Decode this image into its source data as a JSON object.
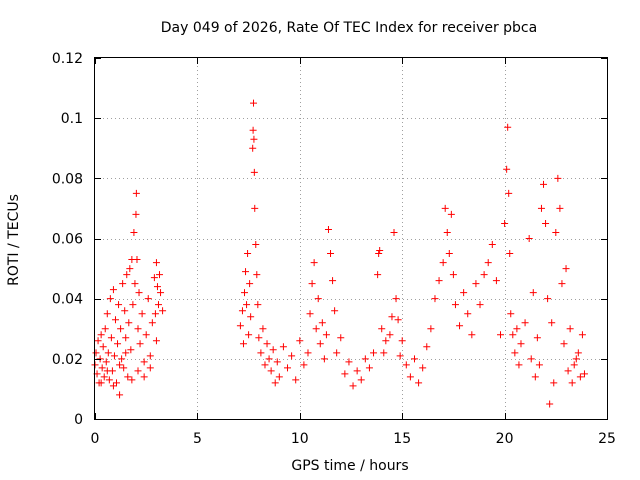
{
  "chart_data": {
    "type": "scatter",
    "title": "Day 049 of 2026, Rate Of TEC Index for receiver pbca",
    "xlabel": "GPS time / hours",
    "ylabel": "ROTI / TECUs",
    "xlim": [
      0,
      25
    ],
    "ylim": [
      0,
      0.12
    ],
    "xticks": [
      0,
      5,
      10,
      15,
      20,
      25
    ],
    "yticks": [
      0,
      0.02,
      0.04,
      0.06,
      0.08,
      0.1,
      0.12
    ],
    "xtick_labels": [
      "0",
      "5",
      "10",
      "15",
      "20",
      "25"
    ],
    "ytick_labels": [
      "0",
      "0.02",
      "0.04",
      "0.06",
      "0.08",
      "0.1",
      "0.12"
    ],
    "grid": true,
    "marker": "plus",
    "color": "#ff0000",
    "series": [
      {
        "points": [
          [
            0.0,
            0.018
          ],
          [
            0.05,
            0.022
          ],
          [
            0.1,
            0.015
          ],
          [
            0.15,
            0.026
          ],
          [
            0.2,
            0.012
          ],
          [
            0.25,
            0.02
          ],
          [
            0.3,
            0.028
          ],
          [
            0.35,
            0.017
          ],
          [
            0.4,
            0.024
          ],
          [
            0.45,
            0.014
          ],
          [
            0.5,
            0.03
          ],
          [
            0.55,
            0.019
          ],
          [
            0.6,
            0.035
          ],
          [
            0.65,
            0.022
          ],
          [
            0.7,
            0.013
          ],
          [
            0.75,
            0.04
          ],
          [
            0.8,
            0.027
          ],
          [
            0.85,
            0.016
          ],
          [
            0.9,
            0.043
          ],
          [
            0.95,
            0.021
          ],
          [
            1.0,
            0.033
          ],
          [
            1.05,
            0.012
          ],
          [
            1.1,
            0.025
          ],
          [
            1.15,
            0.038
          ],
          [
            1.2,
            0.008
          ],
          [
            1.25,
            0.03
          ],
          [
            1.3,
            0.02
          ],
          [
            1.35,
            0.045
          ],
          [
            1.4,
            0.017
          ],
          [
            1.45,
            0.036
          ],
          [
            1.5,
            0.027
          ],
          [
            1.55,
            0.048
          ],
          [
            1.6,
            0.014
          ],
          [
            1.65,
            0.032
          ],
          [
            1.7,
            0.05
          ],
          [
            1.75,
            0.023
          ],
          [
            1.8,
            0.053
          ],
          [
            1.85,
            0.038
          ],
          [
            1.9,
            0.062
          ],
          [
            1.95,
            0.045
          ],
          [
            2.0,
            0.068
          ],
          [
            2.02,
            0.075
          ],
          [
            2.05,
            0.053
          ],
          [
            2.1,
            0.03
          ],
          [
            2.15,
            0.042
          ],
          [
            2.2,
            0.025
          ],
          [
            2.3,
            0.035
          ],
          [
            2.4,
            0.019
          ],
          [
            2.5,
            0.028
          ],
          [
            2.6,
            0.04
          ],
          [
            2.7,
            0.017
          ],
          [
            2.8,
            0.032
          ],
          [
            2.9,
            0.047
          ],
          [
            2.95,
            0.035
          ],
          [
            3.0,
            0.052
          ],
          [
            3.05,
            0.044
          ],
          [
            3.1,
            0.038
          ],
          [
            3.15,
            0.048
          ],
          [
            3.2,
            0.042
          ],
          [
            3.3,
            0.036
          ],
          [
            0.3,
            0.012
          ],
          [
            0.6,
            0.016
          ],
          [
            0.9,
            0.011
          ],
          [
            1.2,
            0.018
          ],
          [
            1.5,
            0.022
          ],
          [
            1.8,
            0.013
          ],
          [
            2.1,
            0.016
          ],
          [
            2.4,
            0.014
          ],
          [
            2.7,
            0.021
          ],
          [
            3.0,
            0.026
          ],
          [
            7.1,
            0.031
          ],
          [
            7.2,
            0.036
          ],
          [
            7.25,
            0.025
          ],
          [
            7.3,
            0.042
          ],
          [
            7.35,
            0.049
          ],
          [
            7.4,
            0.038
          ],
          [
            7.45,
            0.055
          ],
          [
            7.5,
            0.028
          ],
          [
            7.55,
            0.045
          ],
          [
            7.6,
            0.034
          ],
          [
            7.7,
            0.09
          ],
          [
            7.72,
            0.096
          ],
          [
            7.74,
            0.105
          ],
          [
            7.76,
            0.093
          ],
          [
            7.78,
            0.082
          ],
          [
            7.8,
            0.07
          ],
          [
            7.85,
            0.058
          ],
          [
            7.9,
            0.048
          ],
          [
            7.95,
            0.038
          ],
          [
            8.0,
            0.027
          ],
          [
            8.1,
            0.022
          ],
          [
            8.2,
            0.03
          ],
          [
            8.3,
            0.018
          ],
          [
            8.4,
            0.025
          ],
          [
            8.5,
            0.02
          ],
          [
            8.6,
            0.016
          ],
          [
            8.7,
            0.023
          ],
          [
            8.8,
            0.012
          ],
          [
            8.9,
            0.019
          ],
          [
            9.0,
            0.014
          ],
          [
            9.2,
            0.024
          ],
          [
            9.4,
            0.017
          ],
          [
            9.6,
            0.021
          ],
          [
            9.8,
            0.013
          ],
          [
            10.0,
            0.026
          ],
          [
            10.2,
            0.018
          ],
          [
            10.4,
            0.022
          ],
          [
            10.5,
            0.035
          ],
          [
            10.6,
            0.045
          ],
          [
            10.7,
            0.052
          ],
          [
            10.8,
            0.03
          ],
          [
            10.9,
            0.04
          ],
          [
            11.0,
            0.025
          ],
          [
            11.1,
            0.032
          ],
          [
            11.2,
            0.02
          ],
          [
            11.3,
            0.028
          ],
          [
            11.4,
            0.063
          ],
          [
            11.5,
            0.055
          ],
          [
            11.6,
            0.046
          ],
          [
            11.7,
            0.036
          ],
          [
            11.8,
            0.022
          ],
          [
            12.0,
            0.027
          ],
          [
            12.2,
            0.015
          ],
          [
            12.4,
            0.019
          ],
          [
            12.6,
            0.011
          ],
          [
            12.8,
            0.016
          ],
          [
            13.0,
            0.013
          ],
          [
            13.2,
            0.02
          ],
          [
            13.4,
            0.017
          ],
          [
            13.6,
            0.022
          ],
          [
            13.8,
            0.048
          ],
          [
            13.85,
            0.055
          ],
          [
            13.9,
            0.056
          ],
          [
            14.0,
            0.03
          ],
          [
            14.1,
            0.022
          ],
          [
            14.2,
            0.026
          ],
          [
            14.4,
            0.028
          ],
          [
            14.5,
            0.034
          ],
          [
            14.6,
            0.062
          ],
          [
            14.7,
            0.04
          ],
          [
            14.8,
            0.033
          ],
          [
            14.9,
            0.021
          ],
          [
            15.0,
            0.026
          ],
          [
            15.2,
            0.018
          ],
          [
            15.4,
            0.014
          ],
          [
            15.6,
            0.02
          ],
          [
            15.8,
            0.012
          ],
          [
            16.0,
            0.017
          ],
          [
            16.2,
            0.024
          ],
          [
            16.4,
            0.03
          ],
          [
            16.6,
            0.04
          ],
          [
            16.8,
            0.046
          ],
          [
            17.0,
            0.052
          ],
          [
            17.1,
            0.07
          ],
          [
            17.2,
            0.062
          ],
          [
            17.3,
            0.055
          ],
          [
            17.4,
            0.068
          ],
          [
            17.5,
            0.048
          ],
          [
            17.6,
            0.038
          ],
          [
            17.8,
            0.031
          ],
          [
            18.0,
            0.042
          ],
          [
            18.2,
            0.035
          ],
          [
            18.4,
            0.028
          ],
          [
            18.6,
            0.045
          ],
          [
            18.8,
            0.038
          ],
          [
            19.0,
            0.048
          ],
          [
            19.2,
            0.052
          ],
          [
            19.4,
            0.058
          ],
          [
            19.6,
            0.046
          ],
          [
            19.8,
            0.028
          ],
          [
            20.0,
            0.065
          ],
          [
            20.1,
            0.083
          ],
          [
            20.15,
            0.097
          ],
          [
            20.2,
            0.075
          ],
          [
            20.25,
            0.055
          ],
          [
            20.3,
            0.035
          ],
          [
            20.4,
            0.028
          ],
          [
            20.5,
            0.022
          ],
          [
            20.6,
            0.03
          ],
          [
            20.7,
            0.018
          ],
          [
            20.8,
            0.025
          ],
          [
            21.0,
            0.032
          ],
          [
            21.2,
            0.06
          ],
          [
            21.4,
            0.042
          ],
          [
            21.6,
            0.027
          ],
          [
            21.8,
            0.07
          ],
          [
            21.9,
            0.078
          ],
          [
            22.0,
            0.065
          ],
          [
            22.1,
            0.04
          ],
          [
            22.2,
            0.005
          ],
          [
            22.3,
            0.032
          ],
          [
            22.5,
            0.062
          ],
          [
            22.6,
            0.08
          ],
          [
            22.7,
            0.07
          ],
          [
            22.8,
            0.045
          ],
          [
            22.9,
            0.025
          ],
          [
            23.0,
            0.05
          ],
          [
            23.2,
            0.03
          ],
          [
            23.4,
            0.018
          ],
          [
            23.6,
            0.022
          ],
          [
            23.8,
            0.028
          ],
          [
            23.9,
            0.015
          ],
          [
            21.3,
            0.02
          ],
          [
            21.5,
            0.014
          ],
          [
            21.7,
            0.018
          ],
          [
            22.4,
            0.012
          ],
          [
            23.1,
            0.016
          ],
          [
            23.3,
            0.012
          ],
          [
            23.5,
            0.02
          ],
          [
            23.7,
            0.014
          ]
        ]
      }
    ]
  }
}
